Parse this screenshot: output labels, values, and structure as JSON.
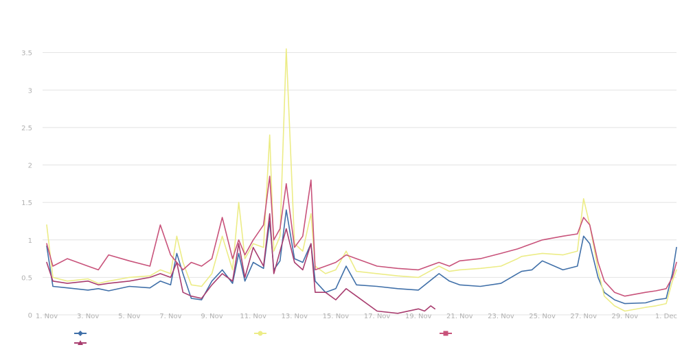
{
  "chart_data": {
    "type": "line",
    "title": "",
    "xlabel": "",
    "ylabel": "",
    "x_ticks": [
      "1. Nov",
      "3. Nov",
      "5. Nov",
      "7. Nov",
      "9. Nov",
      "11. Nov",
      "13. Nov",
      "15. Nov",
      "17. Nov",
      "19. Nov",
      "21. Nov",
      "23. Nov",
      "25. Nov",
      "27. Nov",
      "29. Nov",
      "1. Dec"
    ],
    "y_ticks": [
      "0",
      "0.5",
      "1",
      "1.5",
      "2",
      "2.5",
      "3",
      "3.5"
    ],
    "ylim": [
      0,
      4
    ],
    "xlim_days": [
      1,
      31.5
    ],
    "grid": "horizontal",
    "legend_position": "bottom",
    "colors": {
      "blue": "#3f6fa8",
      "yellow": "#ecec86",
      "magenta": "#c8527a",
      "purple": "#a83c6e",
      "grid": "#e2e2e2"
    },
    "series": [
      {
        "name": "",
        "color": "#3f6fa8",
        "legend_marker": "diamond",
        "x": [
          1,
          1.3,
          2,
          3,
          3.5,
          4,
          5,
          6,
          6.5,
          7,
          7.3,
          7.6,
          8,
          8.5,
          9,
          9.5,
          10,
          10.3,
          10.6,
          11,
          11.5,
          11.8,
          12,
          12.3,
          12.6,
          13,
          13.4,
          13.8,
          14,
          14.5,
          15,
          15.5,
          16,
          17,
          18,
          19,
          20,
          20.5,
          21,
          22,
          23,
          23.8,
          24,
          24.5,
          25,
          26,
          26.7,
          27,
          27.3,
          27.7,
          28,
          28.5,
          29,
          30,
          30.5,
          31,
          31.3,
          31.5
        ],
        "y": [
          0.92,
          0.38,
          0.36,
          0.33,
          0.35,
          0.32,
          0.38,
          0.36,
          0.45,
          0.4,
          0.82,
          0.55,
          0.22,
          0.2,
          0.45,
          0.6,
          0.42,
          0.82,
          0.45,
          0.7,
          0.62,
          1.25,
          0.6,
          0.72,
          1.4,
          0.75,
          0.7,
          0.95,
          0.45,
          0.3,
          0.35,
          0.65,
          0.4,
          0.38,
          0.35,
          0.33,
          0.55,
          0.45,
          0.4,
          0.38,
          0.42,
          0.55,
          0.58,
          0.6,
          0.72,
          0.6,
          0.65,
          1.05,
          0.95,
          0.5,
          0.3,
          0.2,
          0.15,
          0.16,
          0.2,
          0.22,
          0.55,
          0.9
        ]
      },
      {
        "name": "",
        "color": "#ecec86",
        "legend_marker": "circle",
        "x": [
          1,
          1.3,
          2,
          3,
          3.5,
          4,
          5,
          6,
          6.5,
          7,
          7.3,
          7.6,
          8,
          8.5,
          9,
          9.5,
          10,
          10.3,
          10.6,
          11,
          11.5,
          11.8,
          12,
          12.3,
          12.6,
          13,
          13.4,
          13.8,
          14,
          14.5,
          15,
          15.5,
          16,
          17,
          18,
          19,
          20,
          20.5,
          21,
          22,
          23,
          23.8,
          24,
          24.5,
          25,
          26,
          26.7,
          27,
          27.3,
          27.7,
          28,
          28.5,
          29,
          30,
          30.5,
          31,
          31.3,
          31.5
        ],
        "y": [
          1.2,
          0.5,
          0.45,
          0.48,
          0.42,
          0.45,
          0.5,
          0.52,
          0.6,
          0.55,
          1.05,
          0.7,
          0.4,
          0.38,
          0.55,
          1.05,
          0.6,
          1.5,
          0.75,
          0.95,
          0.9,
          2.4,
          0.85,
          1.05,
          3.55,
          0.95,
          0.85,
          1.35,
          0.65,
          0.55,
          0.6,
          0.85,
          0.58,
          0.55,
          0.52,
          0.5,
          0.65,
          0.58,
          0.6,
          0.62,
          0.65,
          0.75,
          0.78,
          0.8,
          0.82,
          0.8,
          0.85,
          1.55,
          1.2,
          0.6,
          0.25,
          0.12,
          0.05,
          0.1,
          0.12,
          0.15,
          0.45,
          0.6
        ]
      },
      {
        "name": "",
        "color": "#c8527a",
        "legend_marker": "square",
        "x": [
          1,
          1.3,
          2,
          3,
          3.5,
          4,
          5,
          6,
          6.5,
          7,
          7.3,
          7.6,
          8,
          8.5,
          9,
          9.5,
          10,
          10.3,
          10.6,
          11,
          11.5,
          11.8,
          12,
          12.3,
          12.6,
          13,
          13.4,
          13.8,
          14,
          14.5,
          15,
          15.5,
          16,
          17,
          18,
          19,
          20,
          20.5,
          21,
          22,
          23,
          23.8,
          24,
          24.5,
          25,
          26,
          26.7,
          27,
          27.3,
          27.7,
          28,
          28.5,
          29,
          30,
          30.5,
          31,
          31.3,
          31.5
        ],
        "y": [
          0.95,
          0.65,
          0.75,
          0.65,
          0.6,
          0.8,
          0.72,
          0.65,
          1.2,
          0.8,
          0.7,
          0.6,
          0.7,
          0.65,
          0.75,
          1.3,
          0.75,
          1.0,
          0.8,
          1.0,
          1.2,
          1.85,
          1.0,
          1.15,
          1.75,
          0.9,
          1.05,
          1.8,
          0.6,
          0.65,
          0.7,
          0.8,
          0.75,
          0.65,
          0.62,
          0.6,
          0.7,
          0.65,
          0.72,
          0.75,
          0.82,
          0.88,
          0.9,
          0.95,
          1.0,
          1.05,
          1.08,
          1.3,
          1.2,
          0.7,
          0.45,
          0.3,
          0.25,
          0.3,
          0.32,
          0.35,
          0.5,
          0.7
        ]
      },
      {
        "name": "",
        "color": "#a83c6e",
        "legend_marker": "triangle",
        "x": [
          1,
          1.3,
          2,
          3,
          3.5,
          4,
          5,
          6,
          6.5,
          7,
          7.3,
          7.6,
          8,
          8.5,
          9,
          9.5,
          10,
          10.3,
          10.6,
          11,
          11.5,
          11.8,
          12,
          12.3,
          12.6,
          13,
          13.4,
          13.8,
          14,
          14.5,
          15,
          15.5,
          16,
          17,
          18,
          19,
          19.3,
          19.6,
          19.8
        ],
        "y": [
          0.7,
          0.45,
          0.42,
          0.45,
          0.4,
          0.42,
          0.45,
          0.5,
          0.55,
          0.5,
          0.7,
          0.3,
          0.25,
          0.22,
          0.4,
          0.55,
          0.45,
          0.95,
          0.5,
          0.9,
          0.65,
          1.35,
          0.55,
          0.85,
          1.15,
          0.7,
          0.6,
          0.95,
          0.3,
          0.3,
          0.2,
          0.35,
          0.25,
          0.05,
          0.02,
          0.08,
          0.05,
          0.12,
          0.08
        ]
      }
    ]
  }
}
